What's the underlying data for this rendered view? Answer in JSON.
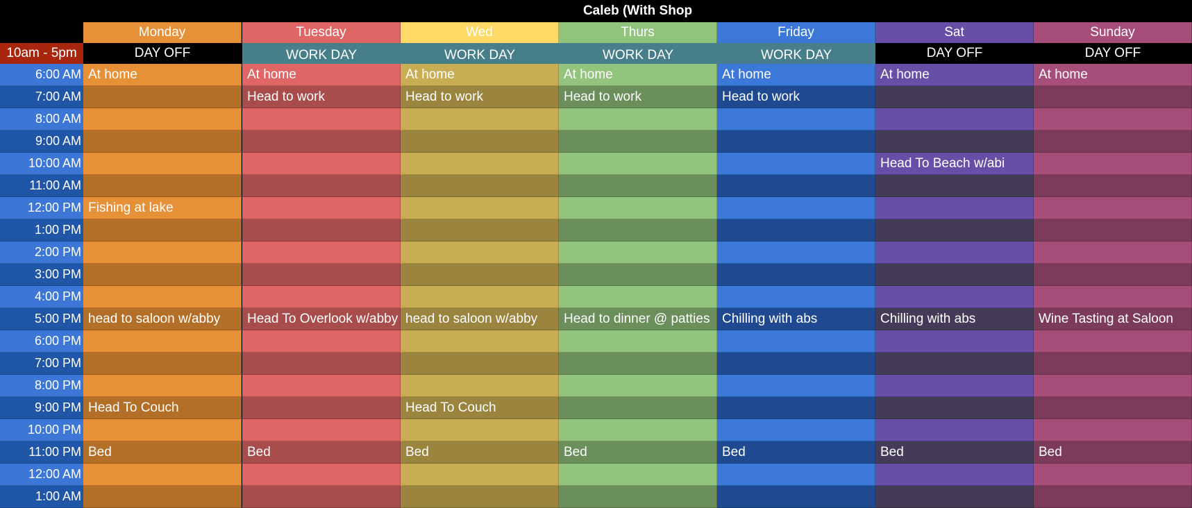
{
  "title": "Caleb (With Shop",
  "shift_label": "10am - 5pm",
  "times": [
    "6:00 AM",
    "7:00 AM",
    "8:00 AM",
    "9:00 AM",
    "10:00 AM",
    "11:00 AM",
    "12:00 PM",
    "1:00 PM",
    "2:00 PM",
    "3:00 PM",
    "4:00 PM",
    "5:00 PM",
    "6:00 PM",
    "7:00 PM",
    "8:00 PM",
    "9:00 PM",
    "10:00 PM",
    "11:00 PM",
    "12:00 AM",
    "1:00 AM"
  ],
  "colors": {
    "time_light": "#3c77d8",
    "time_dark": "#1f56a8"
  },
  "days": [
    {
      "name": "Monday",
      "status": "DAY OFF",
      "header_color": "#e69138",
      "light": "#e69138",
      "dark": "#b36f27",
      "events": {
        "0": "At home",
        "6": "Fishing at lake",
        "11": "head to saloon w/abby",
        "15": "Head To Couch",
        "17": "Bed"
      }
    },
    {
      "name": "Tuesday",
      "status": "WORK DAY",
      "header_color": "#e06666",
      "light": "#e06666",
      "dark": "#a84c4c",
      "events": {
        "0": "At home",
        "1": "Head to work",
        "11": "Head To Overlook w/abby",
        "17": "Bed"
      }
    },
    {
      "name": "Wed",
      "status": "WORK DAY",
      "header_color": "#ffd966",
      "light": "#c9ad55",
      "dark": "#9a843e",
      "events": {
        "0": "At home",
        "1": "Head to work",
        "11": "head to saloon w/abby",
        "15": "Head To Couch",
        "17": "Bed"
      }
    },
    {
      "name": "Thurs",
      "status": "WORK DAY",
      "header_color": "#93c47d",
      "light": "#93c47d",
      "dark": "#6a8f5b",
      "events": {
        "0": "At home",
        "1": "Head to work",
        "11": "Head to dinner @ patties",
        "17": "Bed"
      }
    },
    {
      "name": "Friday",
      "status": "WORK DAY",
      "header_color": "#3c78d8",
      "light": "#3c78d8",
      "dark": "#1f4a91",
      "events": {
        "0": "At home",
        "1": "Head to work",
        "11": "Chilling with abs",
        "17": "Bed"
      }
    },
    {
      "name": "Sat",
      "status": "DAY OFF",
      "header_color": "#674ea7",
      "light": "#674ea7",
      "dark": "#433b57",
      "events": {
        "0": "At home",
        "4": "Head To Beach w/abi",
        "11": "Chilling with abs",
        "17": "Bed"
      }
    },
    {
      "name": "Sunday",
      "status": "DAY OFF",
      "header_color": "#a64d79",
      "light": "#a64d79",
      "dark": "#7d3b5c",
      "events": {
        "0": "At home",
        "11": "Wine Tasting at Saloon",
        "17": "Bed"
      }
    }
  ]
}
